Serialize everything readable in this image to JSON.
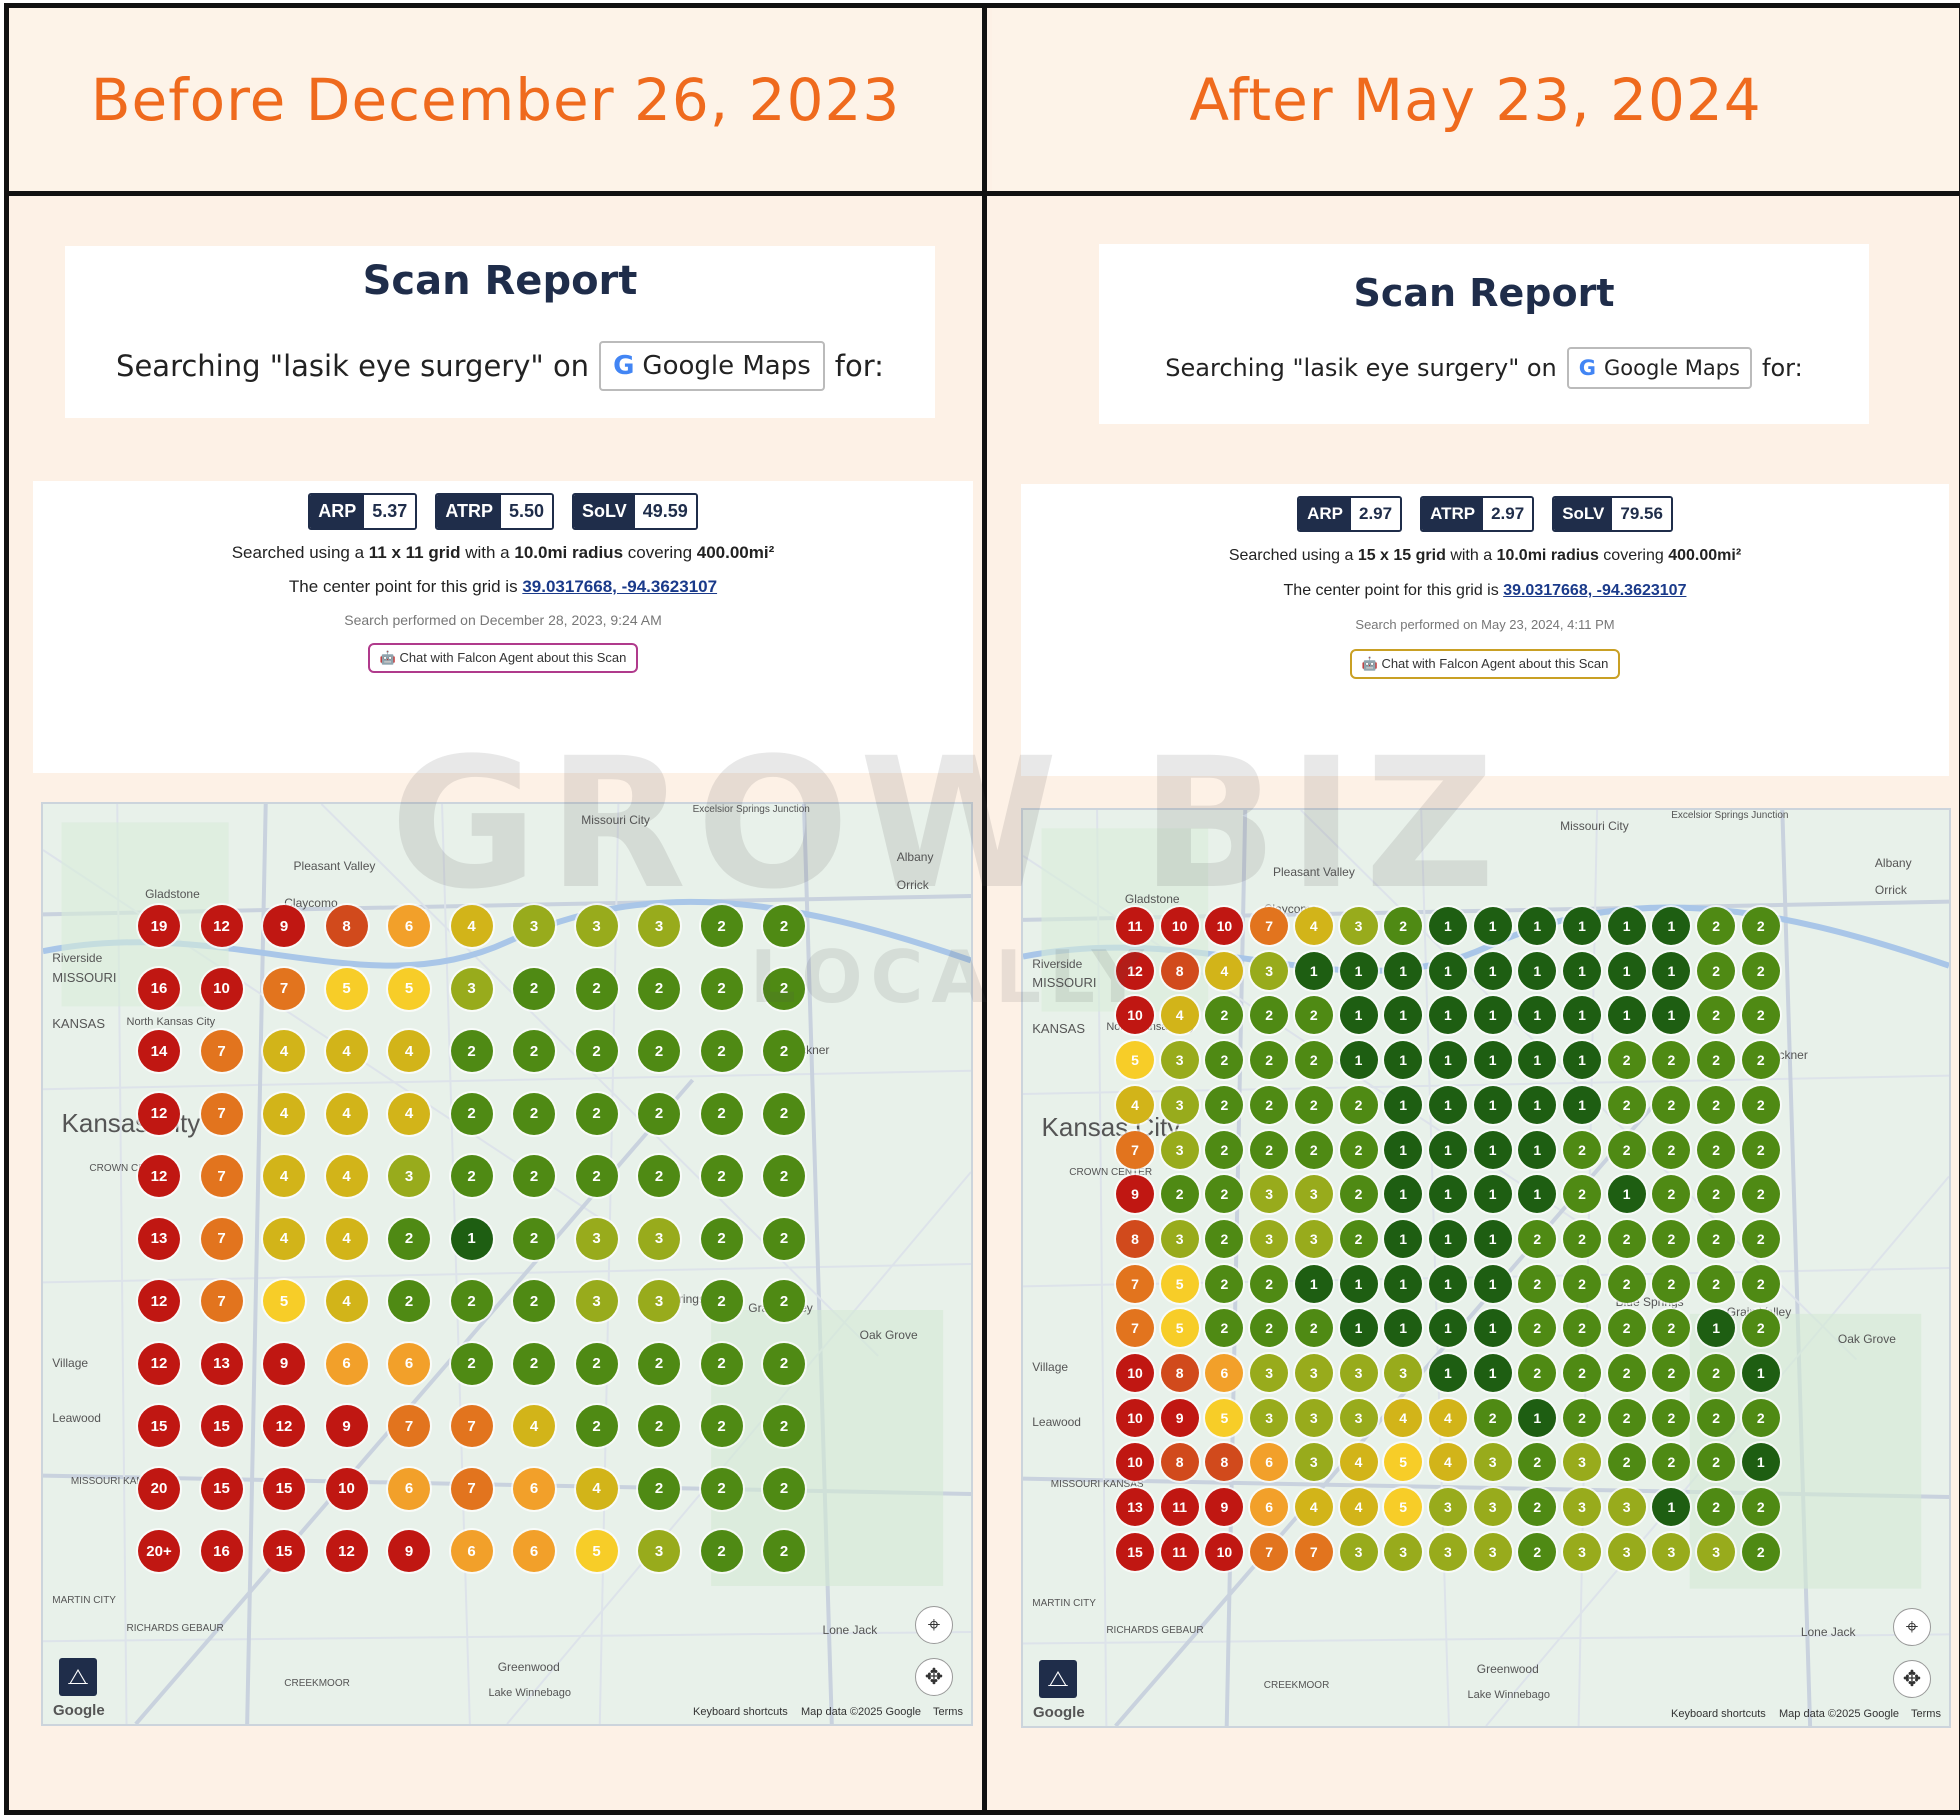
{
  "before": {
    "header": "Before December 26, 2023",
    "title": "Scan Report",
    "search_prefix": "Searching \"lasik eye surgery\" on",
    "platform": "Google Maps",
    "search_suffix": "for:",
    "metrics": [
      {
        "label": "ARP",
        "value": "5.37"
      },
      {
        "label": "ATRP",
        "value": "5.50"
      },
      {
        "label": "SoLV",
        "value": "49.59"
      }
    ],
    "grid_pre": "Searched using a",
    "grid_size": "11 x 11 grid",
    "grid_mid": "with a",
    "radius": "10.0mi radius",
    "cover_pre": "covering",
    "area": "400.00mi²",
    "center_pre": "The center point for this grid is",
    "center": "39.0317668, -94.3623107",
    "performed": "Search performed on December 28, 2023, 9:24 AM",
    "agent_button": "Chat with Falcon Agent about this Scan",
    "map_labels": [
      "Missouri City",
      "Pleasant Valley",
      "Gladstone",
      "Claycomo",
      "Riverside",
      "MISSOURI",
      "KANSAS",
      "North Kansas City",
      "Kansas City",
      "CROWN CENTER",
      "Buckner",
      "Blue Springs",
      "Grain Valley",
      "Oak Grove",
      "Village",
      "Leawood",
      "MISSOURI KANSAS",
      "MARTIN CITY",
      "RICHARDS GEBAUR",
      "CREEKMOOR",
      "Greenwood",
      "Lake Winnebago",
      "Lone Jack",
      "Excelsior Springs Junction",
      "Albany",
      "Orrick"
    ],
    "map_footer": [
      "Keyboard shortcuts",
      "Map data ©2025 Google",
      "Terms"
    ],
    "google_logo": "Google",
    "grid": [
      [
        "19",
        "12",
        "9",
        "8",
        "6",
        "4",
        "3",
        "3",
        "3",
        "2",
        "2"
      ],
      [
        "16",
        "10",
        "7",
        "5",
        "5",
        "3",
        "2",
        "2",
        "2",
        "2",
        "2"
      ],
      [
        "14",
        "7",
        "4",
        "4",
        "4",
        "2",
        "2",
        "2",
        "2",
        "2",
        "2"
      ],
      [
        "12",
        "7",
        "4",
        "4",
        "4",
        "2",
        "2",
        "2",
        "2",
        "2",
        "2"
      ],
      [
        "12",
        "7",
        "4",
        "4",
        "3",
        "2",
        "2",
        "2",
        "2",
        "2",
        "2"
      ],
      [
        "13",
        "7",
        "4",
        "4",
        "2",
        "1",
        "2",
        "3",
        "3",
        "2",
        "2"
      ],
      [
        "12",
        "7",
        "5",
        "4",
        "2",
        "2",
        "2",
        "3",
        "3",
        "2",
        "2"
      ],
      [
        "12",
        "13",
        "9",
        "6",
        "6",
        "2",
        "2",
        "2",
        "2",
        "2",
        "2"
      ],
      [
        "15",
        "15",
        "12",
        "9",
        "7",
        "7",
        "4",
        "2",
        "2",
        "2",
        "2"
      ],
      [
        "20",
        "15",
        "15",
        "10",
        "6",
        "7",
        "6",
        "4",
        "2",
        "2",
        "2"
      ],
      [
        "20+",
        "16",
        "15",
        "12",
        "9",
        "6",
        "6",
        "5",
        "3",
        "2",
        "2"
      ]
    ]
  },
  "after": {
    "header": "After May 23, 2024",
    "title": "Scan Report",
    "search_prefix": "Searching \"lasik eye surgery\" on",
    "platform": "Google Maps",
    "search_suffix": "for:",
    "metrics": [
      {
        "label": "ARP",
        "value": "2.97"
      },
      {
        "label": "ATRP",
        "value": "2.97"
      },
      {
        "label": "SoLV",
        "value": "79.56"
      }
    ],
    "grid_pre": "Searched using a",
    "grid_size": "15 x 15 grid",
    "grid_mid": "with a",
    "radius": "10.0mi radius",
    "cover_pre": "covering",
    "area": "400.00mi²",
    "center_pre": "The center point for this grid is",
    "center": "39.0317668, -94.3623107",
    "performed": "Search performed on May 23, 2024, 4:11 PM",
    "agent_button": "Chat with Falcon Agent about this Scan",
    "map_labels": [
      "Missouri City",
      "Pleasant Valley",
      "Gladstone",
      "Claycomo",
      "Riverside",
      "MISSOURI",
      "KANSAS",
      "North Kansas City",
      "Kansas City",
      "CROWN CENTER",
      "Buckner",
      "Blue Springs",
      "Grain Valley",
      "Oak Grove",
      "Village",
      "Leawood",
      "MISSOURI KANSAS",
      "MARTIN CITY",
      "RICHARDS GEBAUR",
      "CREEKMOOR",
      "Greenwood",
      "Lake Winnebago",
      "Lone Jack",
      "Excelsior Springs Junction",
      "Albany",
      "Orrick"
    ],
    "map_footer": [
      "Keyboard shortcuts",
      "Map data ©2025 Google",
      "Terms"
    ],
    "google_logo": "Google",
    "grid": [
      [
        "11",
        "10",
        "10",
        "7",
        "4",
        "3",
        "2",
        "1",
        "1",
        "1",
        "1",
        "1",
        "1",
        "2",
        "2"
      ],
      [
        "12",
        "8",
        "4",
        "3",
        "1",
        "1",
        "1",
        "1",
        "1",
        "1",
        "1",
        "1",
        "1",
        "2",
        "2"
      ],
      [
        "10",
        "4",
        "2",
        "2",
        "2",
        "1",
        "1",
        "1",
        "1",
        "1",
        "1",
        "1",
        "1",
        "2",
        "2"
      ],
      [
        "5",
        "3",
        "2",
        "2",
        "2",
        "1",
        "1",
        "1",
        "1",
        "1",
        "1",
        "2",
        "2",
        "2",
        "2"
      ],
      [
        "4",
        "3",
        "2",
        "2",
        "2",
        "2",
        "1",
        "1",
        "1",
        "1",
        "1",
        "2",
        "2",
        "2",
        "2"
      ],
      [
        "7",
        "3",
        "2",
        "2",
        "2",
        "2",
        "1",
        "1",
        "1",
        "1",
        "2",
        "2",
        "2",
        "2",
        "2"
      ],
      [
        "9",
        "2",
        "2",
        "3",
        "3",
        "2",
        "1",
        "1",
        "1",
        "1",
        "2",
        "1",
        "2",
        "2",
        "2"
      ],
      [
        "8",
        "3",
        "2",
        "3",
        "3",
        "2",
        "1",
        "1",
        "1",
        "2",
        "2",
        "2",
        "2",
        "2",
        "2"
      ],
      [
        "7",
        "5",
        "2",
        "2",
        "1",
        "1",
        "1",
        "1",
        "1",
        "2",
        "2",
        "2",
        "2",
        "2",
        "2"
      ],
      [
        "7",
        "5",
        "2",
        "2",
        "2",
        "1",
        "1",
        "1",
        "1",
        "2",
        "2",
        "2",
        "2",
        "1",
        "2"
      ],
      [
        "10",
        "8",
        "6",
        "3",
        "3",
        "3",
        "3",
        "1",
        "1",
        "2",
        "2",
        "2",
        "2",
        "2",
        "1"
      ],
      [
        "10",
        "9",
        "5",
        "3",
        "3",
        "3",
        "4",
        "4",
        "2",
        "1",
        "2",
        "2",
        "2",
        "2",
        "2"
      ],
      [
        "10",
        "8",
        "8",
        "6",
        "3",
        "4",
        "5",
        "4",
        "3",
        "2",
        "3",
        "2",
        "2",
        "2",
        "1"
      ],
      [
        "13",
        "11",
        "9",
        "6",
        "4",
        "4",
        "5",
        "3",
        "3",
        "2",
        "3",
        "3",
        "1",
        "2",
        "2"
      ],
      [
        "15",
        "11",
        "10",
        "7",
        "7",
        "3",
        "3",
        "3",
        "3",
        "2",
        "3",
        "3",
        "3",
        "3",
        "2"
      ]
    ]
  },
  "watermark": {
    "line1": "GROW BIZ",
    "line2": "LOCALLY"
  },
  "colors": {
    "header_orange": "#ef6a1d",
    "navy": "#1f2d4a",
    "rank_1": "#1e5e12",
    "rank_2": "#4f8a14",
    "rank_3": "#98ab1c",
    "rank_4": "#d2b419",
    "rank_5": "#f7cd28",
    "rank_6": "#f2a02a",
    "rank_7": "#e2741e",
    "rank_8": "#d14a1c",
    "rank_high": "#c01712"
  }
}
